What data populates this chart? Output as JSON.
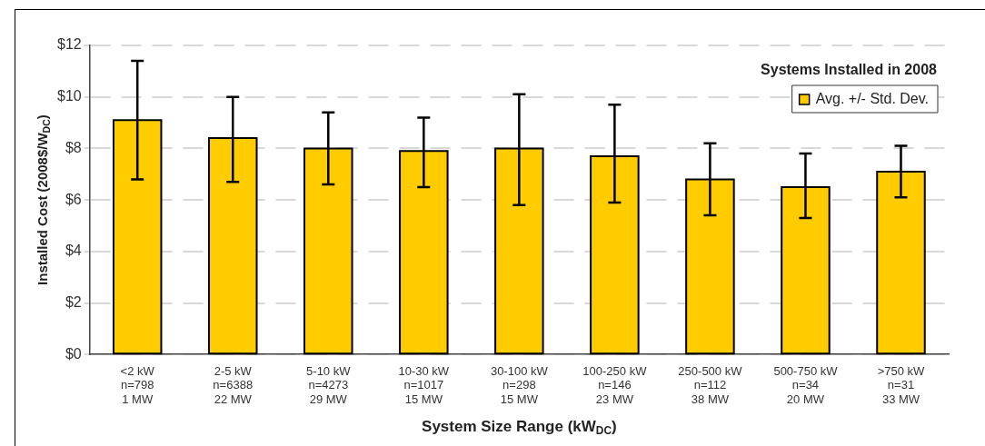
{
  "chart_data": {
    "type": "bar",
    "xlabel": "System Size Range (kW$_{DC}$)",
    "ylabel": "Installed Cost (2008$/W$_{DC}$)",
    "legend_title": "Systems Installed in 2008",
    "categories": [
      "<2 kW\nn=798\n1 MW",
      "2-5 kW\nn=6388\n22 MW",
      "5-10 kW\nn=4273\n29 MW",
      "10-30 kW\nn=1017\n15 MW",
      "30-100 kW\nn=298\n15 MW",
      "100-250 kW\nn=146\n23 MW",
      "250-500 kW\nn=112\n38 MW",
      "500-750 kW\nn=34\n20 MW",
      ">750 kW\nn=31\n33 MW"
    ],
    "series": [
      {
        "name": "Avg. +/- Std. Dev.",
        "color": "#ffcc00",
        "values": [
          9.1,
          8.4,
          8.0,
          7.9,
          8.0,
          7.7,
          6.8,
          6.5,
          7.1
        ],
        "errors": [
          [
            6.8,
            11.4
          ],
          [
            6.7,
            10.0
          ],
          [
            6.6,
            9.4
          ],
          [
            6.5,
            9.2
          ],
          [
            5.8,
            10.1
          ],
          [
            5.9,
            9.7
          ],
          [
            5.4,
            8.2
          ],
          [
            5.3,
            7.8
          ],
          [
            6.1,
            8.1
          ]
        ]
      }
    ],
    "ylim": [
      0,
      12
    ],
    "yticks": [
      {
        "value": 0,
        "label": "$0"
      },
      {
        "value": 2,
        "label": "$2"
      },
      {
        "value": 4,
        "label": "$4"
      },
      {
        "value": 6,
        "label": "$6"
      },
      {
        "value": 8,
        "label": "$8"
      },
      {
        "value": 10,
        "label": "$10"
      },
      {
        "value": 12,
        "label": "$12"
      }
    ],
    "grid": "y",
    "legend": "top right"
  }
}
